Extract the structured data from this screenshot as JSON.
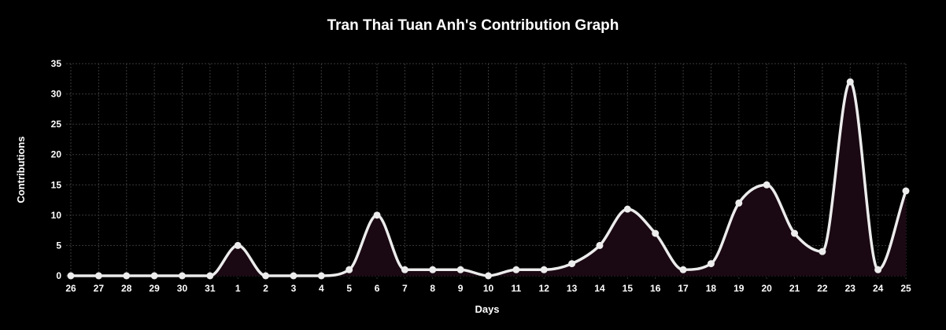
{
  "chart_data": {
    "type": "area",
    "title": "Tran Thai Tuan Anh's Contribution Graph",
    "xlabel": "Days",
    "ylabel": "Contributions",
    "categories": [
      "26",
      "27",
      "28",
      "29",
      "30",
      "31",
      "1",
      "2",
      "3",
      "4",
      "5",
      "6",
      "7",
      "8",
      "9",
      "10",
      "11",
      "12",
      "13",
      "14",
      "15",
      "16",
      "17",
      "18",
      "19",
      "20",
      "21",
      "22",
      "23",
      "24",
      "25"
    ],
    "series": [
      {
        "values": [
          0,
          0,
          0,
          0,
          0,
          0,
          5,
          0,
          0,
          0,
          1,
          10,
          1,
          1,
          1,
          0,
          1,
          1,
          2,
          5,
          11,
          7,
          1,
          2,
          12,
          15,
          7,
          4,
          32,
          1,
          14
        ]
      }
    ],
    "ylim": [
      0,
      35
    ],
    "yticks": [
      0,
      5,
      10,
      15,
      20,
      25,
      30,
      35
    ],
    "grid": true,
    "legend": "none",
    "colors": {
      "background": "#000000",
      "line": "#ececec",
      "fill": "#1a0812",
      "point": "#ececec",
      "grid": "#3a3a3a",
      "text": "#ffffff"
    }
  }
}
